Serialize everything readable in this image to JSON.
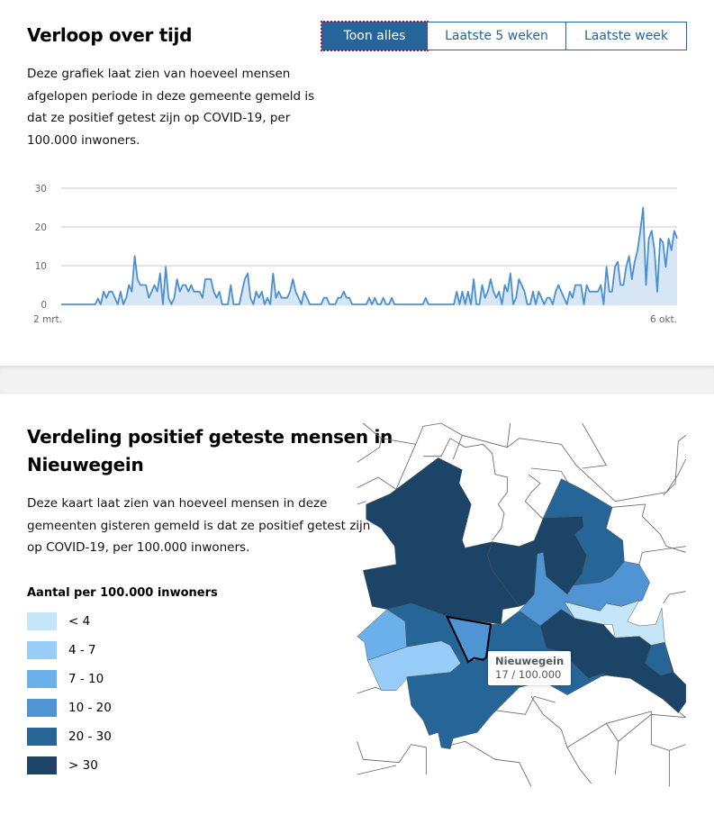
{
  "section1": {
    "title": "Verloop over tijd",
    "buttons": [
      "Toon alles",
      "Laatste 5 weken",
      "Laatste week"
    ],
    "description": [
      "Deze grafiek laat zien van hoeveel mensen",
      "afgelopen periode in deze gemeente gemeld is",
      "dat ze positief getest zijn op COVID-19, per",
      "100.000 inwoners."
    ]
  },
  "chart_data": {
    "type": "area",
    "title": "",
    "xlabel": "",
    "ylabel": "",
    "x_tick_labels": [
      "2 mrt.",
      "6 okt."
    ],
    "y_ticks": [
      0,
      10,
      20,
      30
    ],
    "y_tick_labels": [
      "0",
      "10",
      "20",
      "30"
    ],
    "ylim": [
      0,
      30
    ],
    "grid": true,
    "color": "#4a90d0",
    "fill": "#d6e6f5",
    "values": [
      0,
      0,
      0,
      0,
      0,
      0,
      0,
      0,
      0,
      0,
      0,
      0,
      0,
      1.5,
      0,
      3.3,
      1.7,
      3.3,
      3.3,
      1.7,
      0,
      3.3,
      0,
      1.7,
      5,
      3.3,
      12.5,
      6.5,
      5,
      5,
      5,
      1.7,
      3.3,
      5,
      3.3,
      8,
      0,
      9.7,
      1.7,
      0,
      1.7,
      6.5,
      3.3,
      5,
      5,
      3.3,
      5,
      3.3,
      3.3,
      3.3,
      1.7,
      6.5,
      6.5,
      6.5,
      3.3,
      1.7,
      3.3,
      0,
      0,
      0,
      5,
      0,
      0,
      0,
      3.3,
      6.5,
      8,
      1.7,
      0,
      3.3,
      1.7,
      3.3,
      0,
      1.7,
      0,
      8,
      1.7,
      3.3,
      1.7,
      1.7,
      1.7,
      3.3,
      6.5,
      3.3,
      1.7,
      0,
      3.3,
      1.7,
      0,
      0,
      0,
      0,
      0,
      1.7,
      1.7,
      0,
      0,
      0,
      1.7,
      1.7,
      3.3,
      1.7,
      1.7,
      0,
      0,
      0,
      0,
      0,
      0,
      1.7,
      0,
      1.7,
      0,
      0,
      1.7,
      0,
      0,
      1.7,
      0,
      0,
      0,
      0,
      0,
      0,
      0,
      0,
      0,
      0,
      0,
      1.7,
      0,
      0,
      0,
      0,
      0,
      0,
      0,
      0,
      0,
      0,
      3.3,
      0,
      3.3,
      0,
      3.3,
      0,
      6.5,
      0,
      0,
      5,
      1.7,
      3.3,
      6.5,
      3.3,
      1.7,
      3.3,
      0,
      5,
      3.3,
      8,
      0,
      1.7,
      6.5,
      5,
      3.3,
      0,
      0,
      3.3,
      0,
      3.3,
      1.7,
      0,
      1.7,
      1.7,
      0,
      3.3,
      5,
      3.3,
      1.7,
      0,
      3.3,
      1.7,
      5,
      5,
      5,
      0,
      5,
      3.3,
      3.3,
      3.3,
      3.3,
      5,
      0,
      9.7,
      3.3,
      3.3,
      9.7,
      11,
      5,
      5,
      9.7,
      12.5,
      6.5,
      11,
      14,
      19,
      25,
      5,
      17,
      19,
      14,
      3.3,
      17,
      16,
      9.7,
      17,
      14,
      19,
      17
    ]
  },
  "section2": {
    "title_lines": [
      "Verdeling positief geteste mensen in",
      "Nieuwegein"
    ],
    "description": [
      "Deze kaart laat zien van hoeveel mensen in deze",
      "gemeenten gisteren gemeld is dat ze positief getest zijn",
      "op COVID-19, per 100.000 inwoners."
    ],
    "legend_title": "Aantal per 100.000 inwoners",
    "legend": [
      {
        "label": "< 4",
        "color": "#c5e5f9"
      },
      {
        "label": "4 - 7",
        "color": "#97cdf8"
      },
      {
        "label": "7 - 10",
        "color": "#6ab0eb"
      },
      {
        "label": "10 - 20",
        "color": "#4f94d3"
      },
      {
        "label": "20 - 30",
        "color": "#266598"
      },
      {
        "label": "> 30",
        "color": "#1b4466"
      }
    ],
    "tooltip": {
      "name": "Nieuwegein",
      "value": "17 / 100.000"
    }
  }
}
